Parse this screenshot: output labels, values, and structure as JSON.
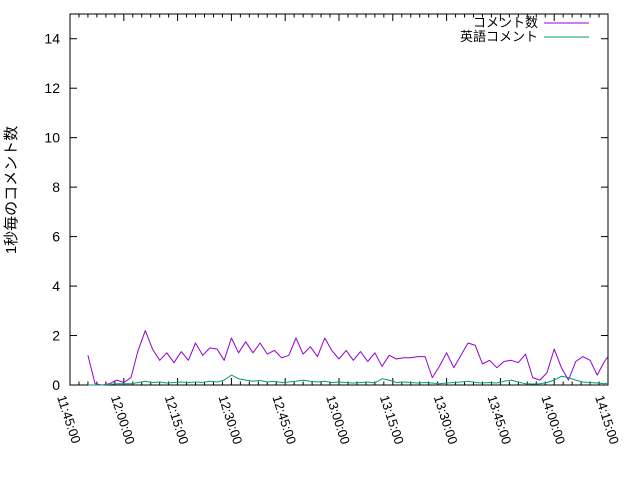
{
  "figure": {
    "background": "#ffffff",
    "axis_color": "#000000",
    "ylabel": "1秒毎のコメント数",
    "xlabel": "",
    "title": ""
  },
  "chart_data": {
    "type": "line",
    "title": "",
    "xlabel": "",
    "ylabel": "1秒毎のコメント数",
    "ylim": [
      0,
      15
    ],
    "x_range": [
      "11:45:00",
      "14:15:00"
    ],
    "grid": false,
    "legend_position": "top-right-inside",
    "yticks": [
      "0",
      "2",
      "4",
      "6",
      "8",
      "10",
      "12",
      "14"
    ],
    "ytick_values": [
      0,
      2,
      4,
      6,
      8,
      10,
      12,
      14
    ],
    "xticks": [
      "11:45:00",
      "12:00:00",
      "12:15:00",
      "12:30:00",
      "12:45:00",
      "13:00:00",
      "13:15:00",
      "13:30:00",
      "13:45:00",
      "14:00:00",
      "14:15:00"
    ],
    "x_minor_interval_seconds": 150,
    "x": [
      "11:50:00",
      "11:52:00",
      "11:54:00",
      "11:56:00",
      "11:58:00",
      "12:00:00",
      "12:02:00",
      "12:04:00",
      "12:06:00",
      "12:08:00",
      "12:10:00",
      "12:12:00",
      "12:14:00",
      "12:16:00",
      "12:18:00",
      "12:20:00",
      "12:22:00",
      "12:24:00",
      "12:26:00",
      "12:28:00",
      "12:30:00",
      "12:32:00",
      "12:34:00",
      "12:36:00",
      "12:38:00",
      "12:40:00",
      "12:42:00",
      "12:44:00",
      "12:46:00",
      "12:48:00",
      "12:50:00",
      "12:52:00",
      "12:54:00",
      "12:56:00",
      "12:58:00",
      "13:00:00",
      "13:02:00",
      "13:04:00",
      "13:06:00",
      "13:08:00",
      "13:10:00",
      "13:12:00",
      "13:14:00",
      "13:16:00",
      "13:18:00",
      "13:20:00",
      "13:22:00",
      "13:24:00",
      "13:26:00",
      "13:28:00",
      "13:30:00",
      "13:32:00",
      "13:34:00",
      "13:36:00",
      "13:38:00",
      "13:40:00",
      "13:42:00",
      "13:44:00",
      "13:46:00",
      "13:48:00",
      "13:50:00",
      "13:52:00",
      "13:54:00",
      "13:56:00",
      "13:58:00",
      "14:00:00",
      "14:02:00",
      "14:04:00",
      "14:06:00",
      "14:08:00",
      "14:10:00",
      "14:12:00",
      "14:14:00",
      "14:15:00"
    ],
    "series": [
      {
        "name": "コメント数",
        "color": "#9400d3",
        "values": [
          1.2,
          0.05,
          0.0,
          0.05,
          0.2,
          0.1,
          0.3,
          1.4,
          2.2,
          1.45,
          1.0,
          1.3,
          0.9,
          1.35,
          1.0,
          1.7,
          1.2,
          1.5,
          1.45,
          1.0,
          1.9,
          1.3,
          1.75,
          1.3,
          1.7,
          1.25,
          1.4,
          1.1,
          1.2,
          1.9,
          1.25,
          1.55,
          1.15,
          1.9,
          1.4,
          1.05,
          1.4,
          1.0,
          1.35,
          0.95,
          1.3,
          0.75,
          1.2,
          1.05,
          1.1,
          1.1,
          1.15,
          1.15,
          0.3,
          0.75,
          1.3,
          0.7,
          1.2,
          1.7,
          1.6,
          0.85,
          1.0,
          0.7,
          0.95,
          1.0,
          0.9,
          1.25,
          0.3,
          0.2,
          0.5,
          1.45,
          0.7,
          0.2,
          0.95,
          1.15,
          1.0,
          0.4,
          0.95,
          1.15
        ]
      },
      {
        "name": "英語コメント",
        "color": "#009e73",
        "values": [
          0,
          0,
          0,
          0.02,
          0.05,
          0.05,
          0.05,
          0.1,
          0.15,
          0.1,
          0.12,
          0.08,
          0.1,
          0.12,
          0.1,
          0.12,
          0.1,
          0.15,
          0.12,
          0.2,
          0.4,
          0.25,
          0.2,
          0.15,
          0.18,
          0.12,
          0.15,
          0.1,
          0.12,
          0.15,
          0.2,
          0.15,
          0.12,
          0.15,
          0.1,
          0.12,
          0.1,
          0.08,
          0.1,
          0.12,
          0.08,
          0.25,
          0.2,
          0.1,
          0.12,
          0.1,
          0.08,
          0.1,
          0.08,
          0.05,
          0.08,
          0.1,
          0.12,
          0.15,
          0.1,
          0.08,
          0.1,
          0.08,
          0.15,
          0.2,
          0.12,
          0.05,
          0.04,
          0.05,
          0.1,
          0.2,
          0.35,
          0.3,
          0.2,
          0.12,
          0.1,
          0.08,
          0.05,
          0.08
        ]
      }
    ]
  }
}
